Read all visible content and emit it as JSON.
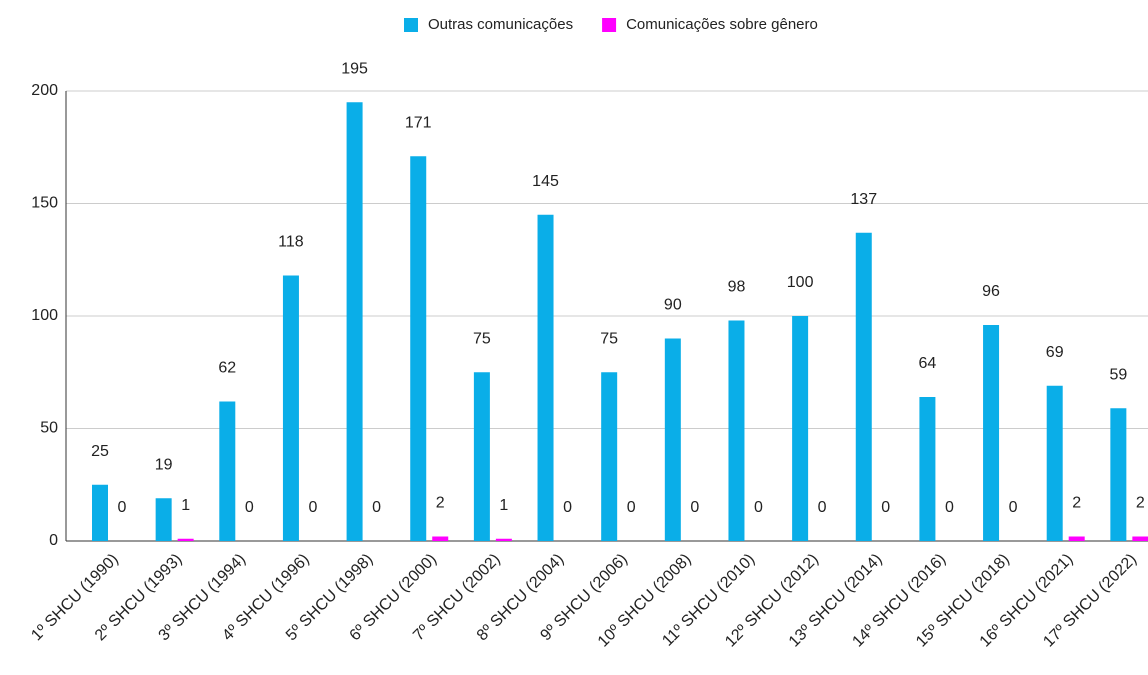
{
  "chart_data": {
    "type": "bar",
    "categories": [
      "1º SHCU (1990)",
      "2º SHCU (1993)",
      "3º SHCU (1994)",
      "4º SHCU (1996)",
      "5º SHCU (1998)",
      "6º SHCU (2000)",
      "7º SHCU (2002)",
      "8º SHCU (2004)",
      "9º SHCU (2006)",
      "10º SHCU (2008)",
      "11º SHCU (2010)",
      "12º SHCU (2012)",
      "13º SHCU (2014)",
      "14º SHCU (2016)",
      "15º SHCU (2018)",
      "16º SHCU (2021)",
      "17º SHCU (2022)"
    ],
    "series": [
      {
        "name": "Outras comunicações",
        "color": "#0aaee8",
        "values": [
          25,
          19,
          62,
          118,
          195,
          171,
          75,
          145,
          75,
          90,
          98,
          100,
          137,
          64,
          96,
          69,
          59
        ]
      },
      {
        "name": "Comunicações sobre gênero",
        "color": "#ff00ff",
        "values": [
          0,
          1,
          0,
          0,
          0,
          2,
          1,
          0,
          0,
          0,
          0,
          0,
          0,
          0,
          0,
          2,
          2
        ]
      }
    ],
    "ylim": [
      0,
      200
    ],
    "yticks": [
      0,
      50,
      100,
      150,
      200
    ],
    "grid": true,
    "legend": "top"
  }
}
